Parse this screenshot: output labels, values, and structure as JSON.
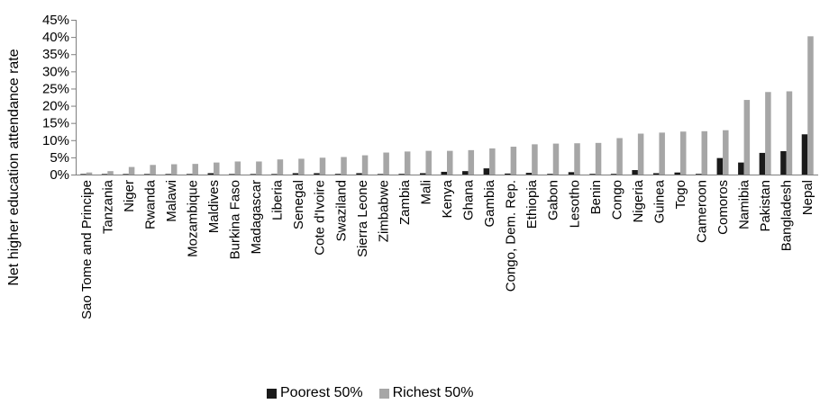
{
  "chart_data": {
    "type": "bar",
    "title": "",
    "xlabel": "",
    "ylabel": "Net higher education attendance rate",
    "ylim": [
      0,
      45
    ],
    "yticks": [
      "0%",
      "5%",
      "10%",
      "15%",
      "20%",
      "25%",
      "30%",
      "35%",
      "40%",
      "45%"
    ],
    "ytick_values": [
      0,
      5,
      10,
      15,
      20,
      25,
      30,
      35,
      40,
      45
    ],
    "grid": false,
    "legend_position": "bottom",
    "categories": [
      "Sao Tome and Principe",
      "Tanzania",
      "Niger",
      "Rwanda",
      "Malawi",
      "Mozambique",
      "Maldives",
      "Burkina Faso",
      "Madagascar",
      "Liberia",
      "Senegal",
      "Cote d'Ivoire",
      "Swaziland",
      "Sierra Leone",
      "Zimbabwe",
      "Zambia",
      "Mali",
      "Kenya",
      "Ghana",
      "Gambia",
      "Congo, Dem. Rep.",
      "Ethiopia",
      "Gabon",
      "Lesotho",
      "Benin",
      "Congo",
      "Nigeria",
      "Guinea",
      "Togo",
      "Cameroon",
      "Comoros",
      "Namibia",
      "Pakistan",
      "Bangladesh",
      "Nepal"
    ],
    "series": [
      {
        "name": "Poorest 50%",
        "color": "#1a1a1a",
        "values": [
          0.1,
          0.1,
          0.1,
          0.1,
          0.1,
          0.1,
          0.4,
          0.1,
          0.1,
          0.1,
          0.4,
          0.4,
          0.2,
          0.4,
          0.1,
          0.2,
          0.4,
          0.8,
          1.0,
          1.8,
          0.3,
          0.5,
          0.2,
          0.7,
          0.2,
          0.2,
          1.3,
          0.4,
          0.6,
          0.2,
          4.8,
          3.5,
          6.3,
          6.8,
          11.7
        ]
      },
      {
        "name": "Richest 50%",
        "color": "#a6a6a6",
        "values": [
          0.6,
          1.0,
          2.2,
          2.8,
          3.0,
          3.1,
          3.5,
          3.8,
          3.8,
          4.4,
          4.6,
          4.9,
          5.1,
          5.6,
          6.4,
          6.7,
          6.9,
          6.9,
          7.1,
          7.6,
          8.1,
          8.8,
          9.0,
          9.1,
          9.2,
          10.6,
          11.9,
          12.2,
          12.5,
          12.6,
          12.9,
          21.7,
          24.0,
          24.2,
          40.2
        ]
      }
    ]
  }
}
